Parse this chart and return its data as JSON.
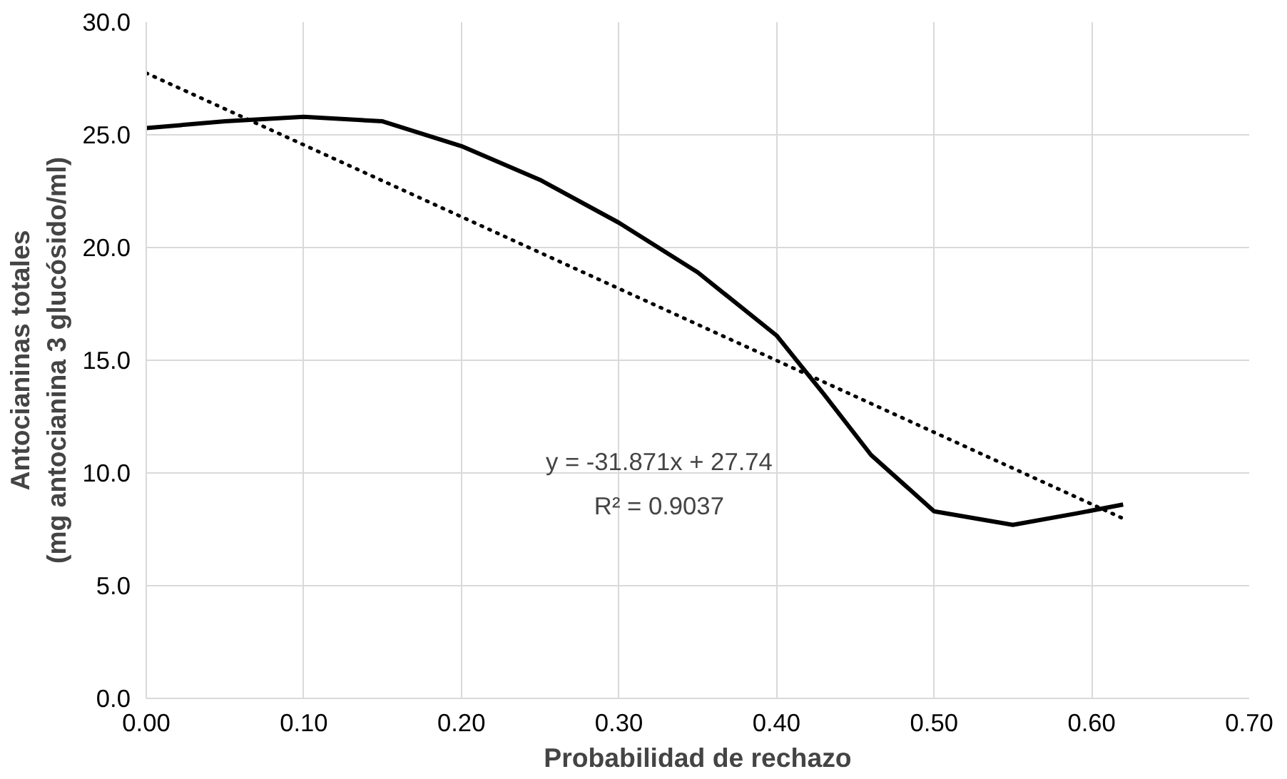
{
  "chart_data": {
    "type": "line",
    "xlabel": "Probabilidad de rechazo",
    "ylabel": "Antocianinas totales\n(mg antocianina 3 glucósido/ml)",
    "xlim": [
      0,
      0.7
    ],
    "xticks": [
      {
        "value": 0,
        "label": "0.00"
      },
      {
        "value": 0.1,
        "label": "0.10"
      },
      {
        "value": 0.2,
        "label": "0.20"
      },
      {
        "value": 0.3,
        "label": "0.30"
      },
      {
        "value": 0.4,
        "label": "0.40"
      },
      {
        "value": 0.5,
        "label": "0.50"
      },
      {
        "value": 0.6,
        "label": "0.60"
      },
      {
        "value": 0.7,
        "label": "0.70"
      }
    ],
    "ylim": [
      0,
      30
    ],
    "yticks": [
      {
        "value": 0,
        "label": "0.0"
      },
      {
        "value": 5,
        "label": "5.0"
      },
      {
        "value": 10,
        "label": "10.0"
      },
      {
        "value": 15,
        "label": "15.0"
      },
      {
        "value": 20,
        "label": "20.0"
      },
      {
        "value": 25,
        "label": "25.0"
      },
      {
        "value": 30,
        "label": "30.0"
      }
    ],
    "grid": true,
    "marker": "none",
    "series": [
      {
        "color": "#000000",
        "line_style": "solid",
        "x": [
          0,
          0.05,
          0.1,
          0.15,
          0.2,
          0.25,
          0.3,
          0.35,
          0.4,
          0.43,
          0.46,
          0.5,
          0.55,
          0.59,
          0.62
        ],
        "values": [
          25.3,
          25.6,
          25.8,
          25.6,
          24.5,
          23.0,
          21.1,
          18.9,
          16.1,
          13.5,
          10.8,
          8.3,
          7.7,
          8.2,
          8.6
        ]
      },
      {
        "color": "#000000",
        "line_style": "dotted",
        "x": [
          0,
          0.62
        ],
        "values": [
          27.74,
          7.98
        ]
      }
    ],
    "annotations": [
      "y = -31.871x + 27.74",
      "R² = 0.9037"
    ]
  }
}
